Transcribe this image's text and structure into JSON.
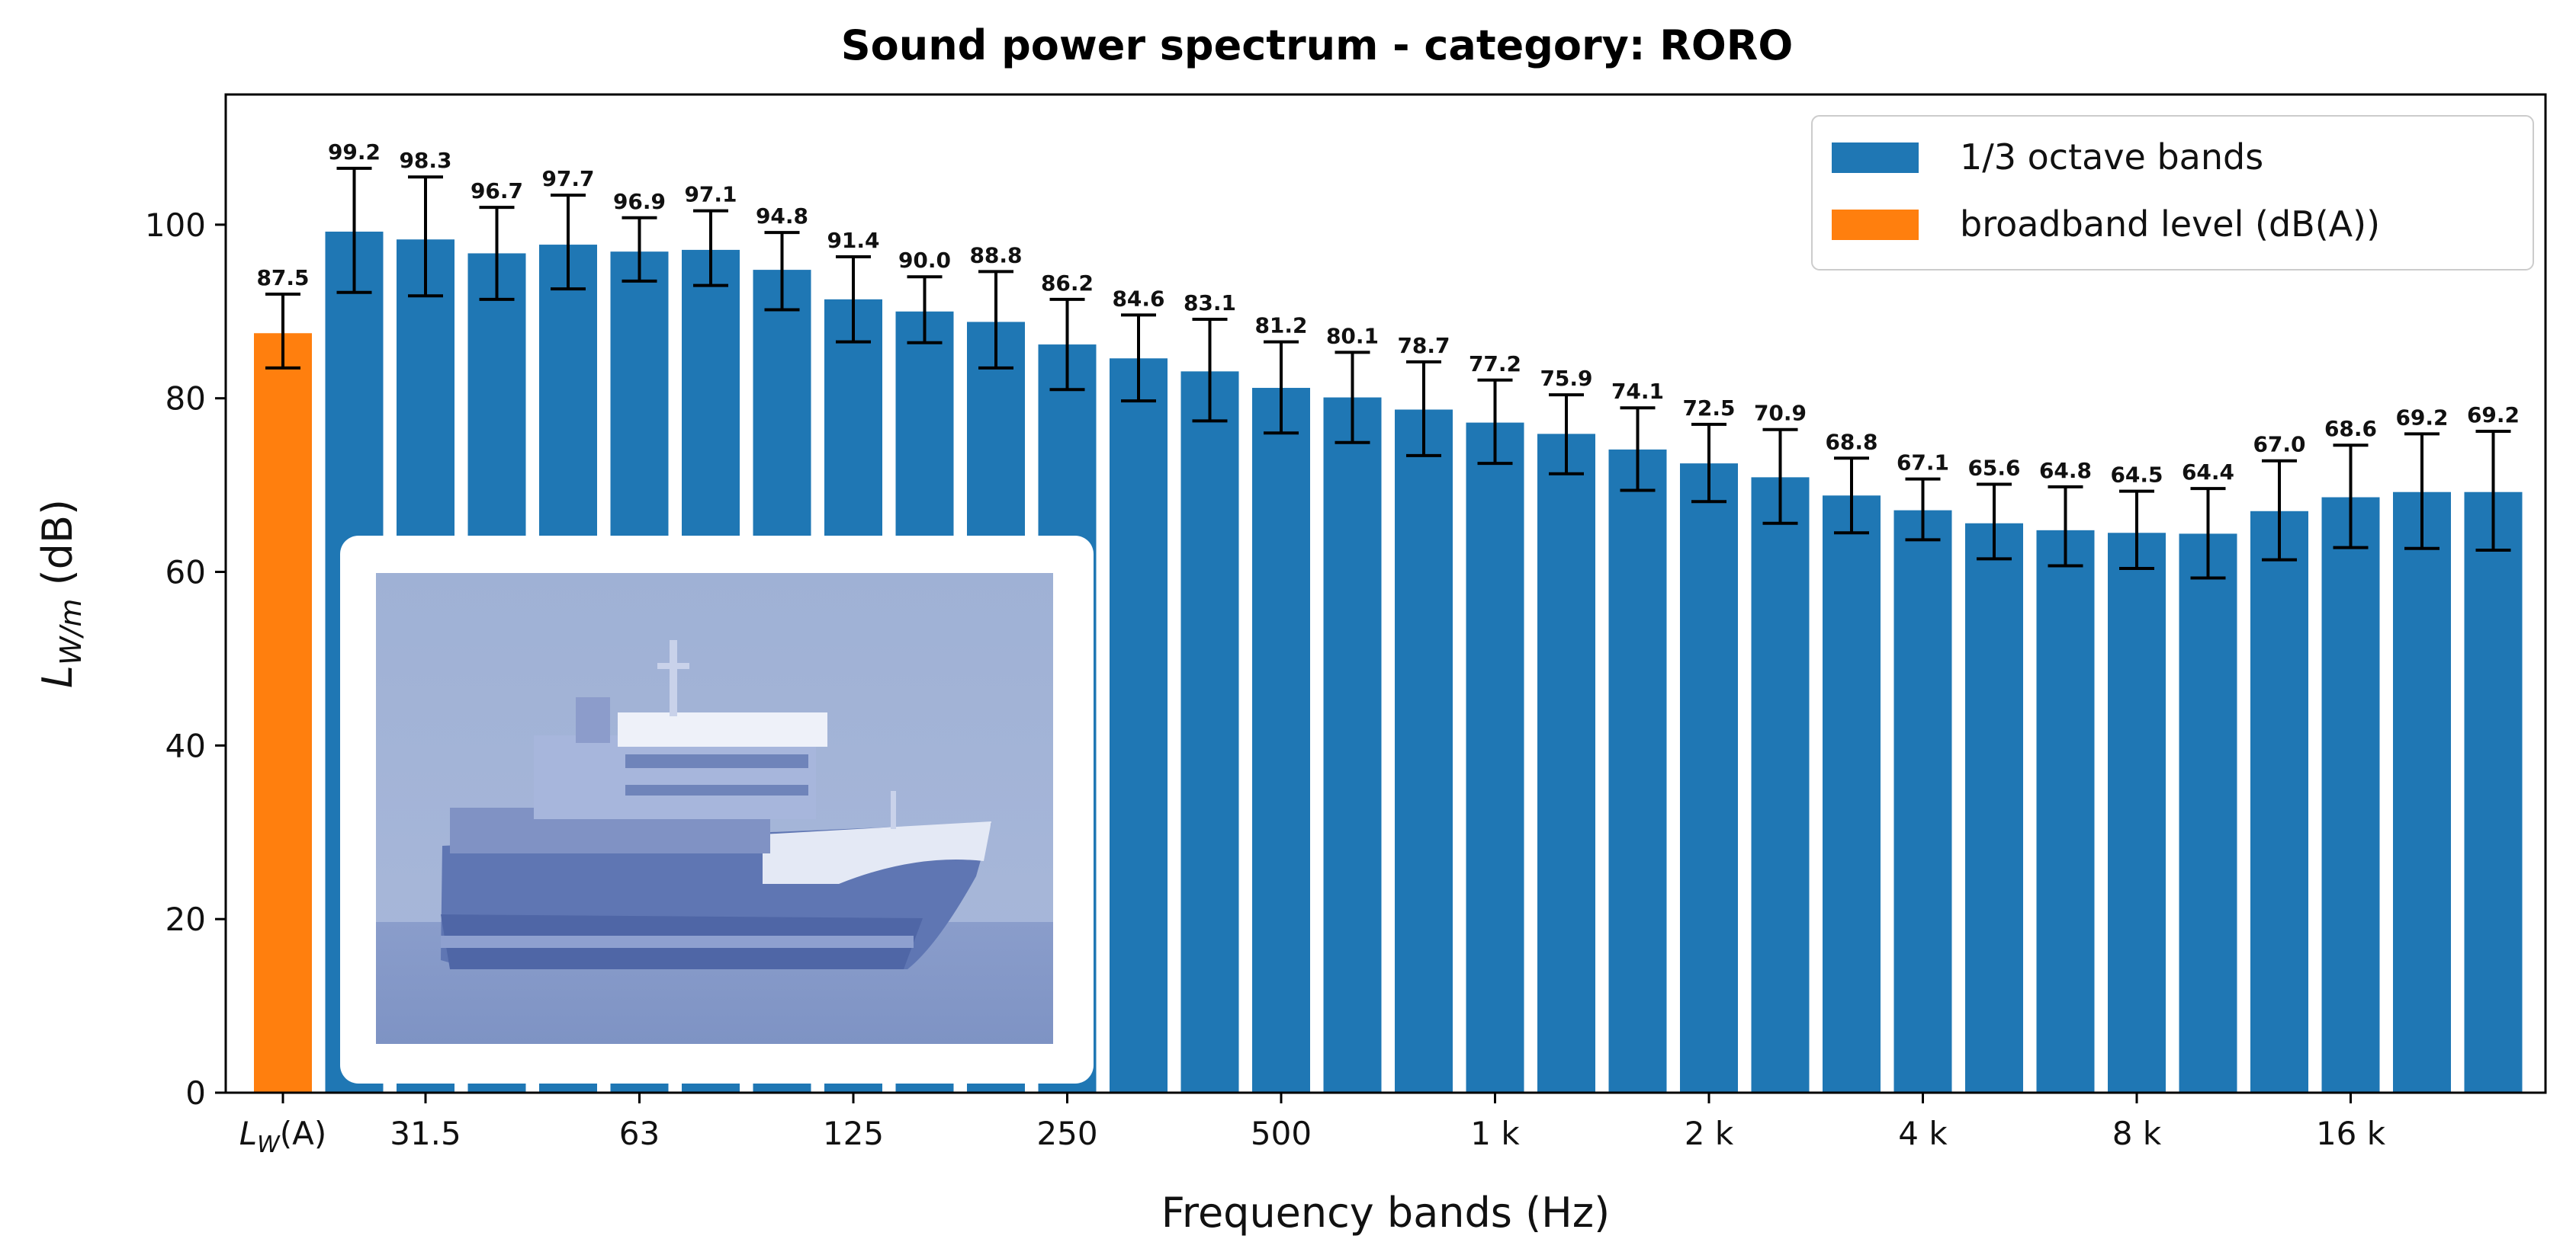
{
  "chart_data": {
    "type": "bar",
    "title": "Sound power spectrum - category: RORO",
    "xlabel": "Frequency bands (Hz)",
    "ylabel": {
      "main": "L",
      "sub": "W/m",
      "unit": " (dB)"
    },
    "ylim": [
      0,
      115
    ],
    "yticks": [
      "0",
      "20",
      "40",
      "60",
      "80",
      "100"
    ],
    "grid": false,
    "legend_position": "top-right",
    "colors": {
      "bands": "#1f77b4",
      "broadband": "#ff7f0e"
    },
    "broadband": {
      "name": "broadband level (dB(A))",
      "tick_label": {
        "main": "L",
        "sub": "W",
        "suffix": "(A)"
      },
      "value": 87.5,
      "err_low": 83.5,
      "err_high": 92.0,
      "label": "87.5"
    },
    "bands_series": {
      "name": "1/3 octave bands",
      "values": [
        99.2,
        98.3,
        96.7,
        97.7,
        96.9,
        97.1,
        94.8,
        91.4,
        90.0,
        88.8,
        86.2,
        84.6,
        83.1,
        81.2,
        80.1,
        78.7,
        77.2,
        75.9,
        74.1,
        72.5,
        70.9,
        68.8,
        67.1,
        65.6,
        64.8,
        64.5,
        64.4,
        67.0,
        68.6,
        69.2,
        69.2
      ],
      "labels": [
        "99.2",
        "98.3",
        "96.7",
        "97.7",
        "96.9",
        "97.1",
        "94.8",
        "91.4",
        "90.0",
        "88.8",
        "86.2",
        "84.6",
        "83.1",
        "81.2",
        "80.1",
        "78.7",
        "77.2",
        "75.9",
        "74.1",
        "72.5",
        "70.9",
        "68.8",
        "67.1",
        "65.6",
        "64.8",
        "64.5",
        "64.4",
        "67.0",
        "68.6",
        "69.2",
        "69.2"
      ],
      "err_low": [
        92.2,
        91.8,
        91.4,
        92.6,
        93.5,
        93.0,
        90.2,
        86.5,
        86.4,
        83.5,
        81.0,
        79.7,
        77.4,
        76.0,
        74.9,
        73.4,
        72.5,
        71.3,
        69.4,
        68.1,
        65.6,
        64.5,
        63.7,
        61.5,
        60.7,
        60.4,
        59.3,
        61.4,
        62.8,
        62.7,
        62.5
      ],
      "err_high": [
        106.5,
        105.5,
        102.0,
        103.4,
        100.8,
        101.6,
        99.1,
        96.3,
        94.0,
        94.6,
        91.4,
        89.6,
        89.1,
        86.5,
        85.3,
        84.2,
        82.1,
        80.4,
        78.9,
        77.0,
        76.4,
        73.1,
        70.7,
        70.1,
        69.8,
        69.3,
        69.6,
        72.8,
        74.6,
        75.9,
        76.2
      ]
    },
    "x_tick_labels": [
      {
        "pos": 2,
        "text": "31.5"
      },
      {
        "pos": 5,
        "text": "63"
      },
      {
        "pos": 8,
        "text": "125"
      },
      {
        "pos": 11,
        "text": "250"
      },
      {
        "pos": 14,
        "text": "500"
      },
      {
        "pos": 17,
        "text": "1 k"
      },
      {
        "pos": 20,
        "text": "2 k"
      },
      {
        "pos": 23,
        "text": "4 k"
      },
      {
        "pos": 26,
        "text": "8 k"
      },
      {
        "pos": 29,
        "text": "16 k"
      }
    ],
    "inset_image": {
      "subject": "roro-ship-photo"
    }
  }
}
